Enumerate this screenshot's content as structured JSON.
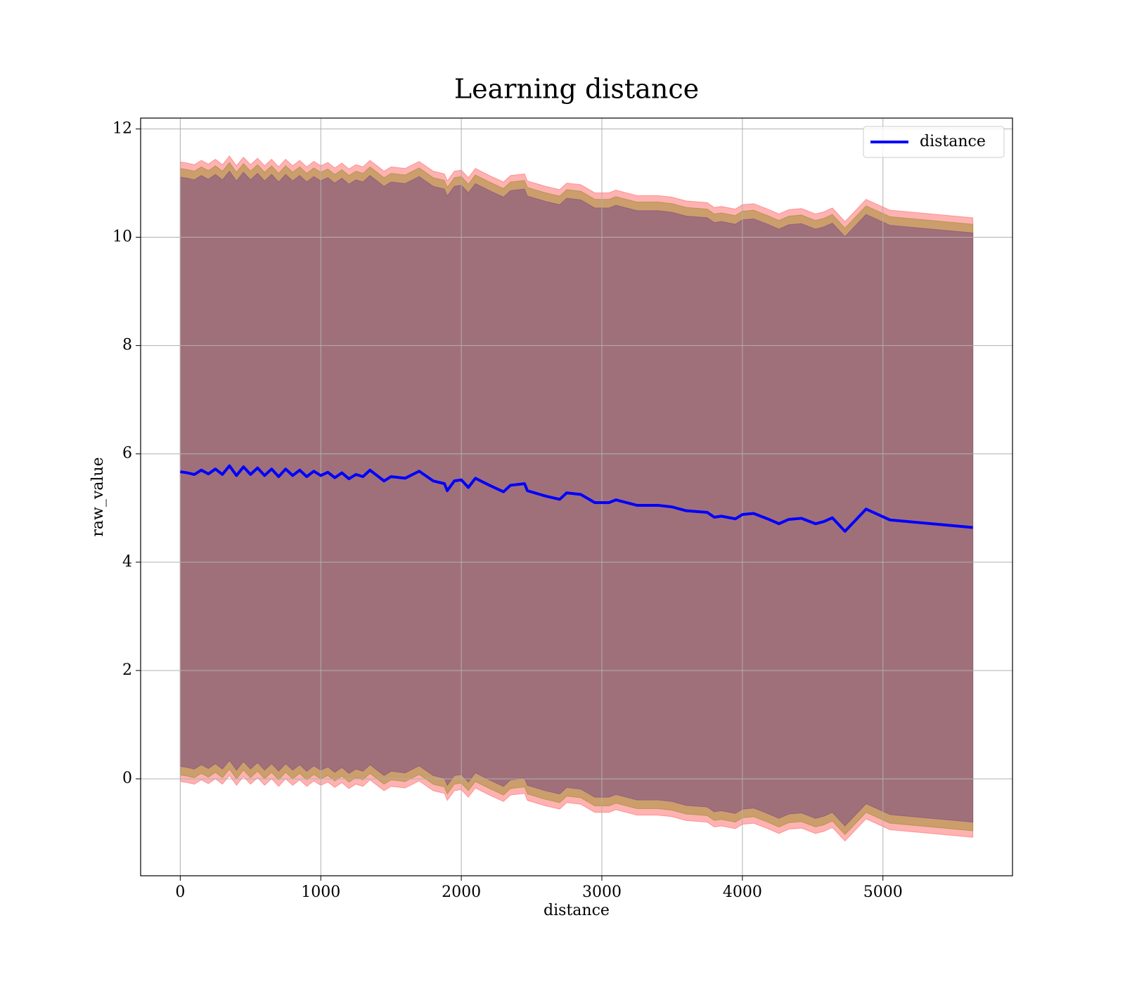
{
  "chart_data": {
    "type": "line",
    "title": "Learning distance",
    "xlabel": "distance",
    "ylabel": "raw_value",
    "x": [
      0,
      50,
      100,
      150,
      200,
      250,
      300,
      350,
      400,
      450,
      500,
      550,
      600,
      650,
      700,
      750,
      800,
      850,
      900,
      950,
      1000,
      1050,
      1100,
      1150,
      1200,
      1250,
      1300,
      1350,
      1400,
      1450,
      1500,
      1600,
      1700,
      1800,
      1880,
      1900,
      1950,
      2000,
      2050,
      2100,
      2200,
      2300,
      2350,
      2450,
      2470,
      2600,
      2700,
      2750,
      2850,
      2950,
      3050,
      3100,
      3250,
      3400,
      3500,
      3600,
      3750,
      3800,
      3850,
      3950,
      4000,
      4080,
      4180,
      4260,
      4330,
      4420,
      4520,
      4580,
      4640,
      4730,
      4880,
      5050,
      5640
    ],
    "series": [
      {
        "name": "distance",
        "color": "#0000ff",
        "values": [
          5.67,
          5.65,
          5.62,
          5.7,
          5.63,
          5.72,
          5.62,
          5.78,
          5.6,
          5.76,
          5.62,
          5.74,
          5.6,
          5.72,
          5.58,
          5.72,
          5.6,
          5.7,
          5.58,
          5.68,
          5.6,
          5.66,
          5.56,
          5.65,
          5.54,
          5.62,
          5.58,
          5.7,
          5.6,
          5.5,
          5.58,
          5.55,
          5.68,
          5.5,
          5.45,
          5.32,
          5.5,
          5.52,
          5.38,
          5.55,
          5.42,
          5.3,
          5.42,
          5.45,
          5.32,
          5.22,
          5.16,
          5.28,
          5.25,
          5.1,
          5.1,
          5.15,
          5.05,
          5.05,
          5.02,
          4.95,
          4.92,
          4.83,
          4.85,
          4.8,
          4.88,
          4.9,
          4.8,
          4.71,
          4.79,
          4.81,
          4.71,
          4.75,
          4.82,
          4.57,
          4.98,
          4.78,
          4.64
        ]
      }
    ],
    "bands": [
      {
        "color": "#ff0000",
        "opacity": 0.3,
        "spread": 5.72
      },
      {
        "color": "#808000",
        "opacity": 0.4,
        "spread": 5.6
      },
      {
        "color": "#744289",
        "opacity": 0.5,
        "spread": 5.44
      }
    ],
    "xlim": [
      -282,
      5922
    ],
    "xticks": [
      0,
      1000,
      2000,
      3000,
      4000,
      5000
    ],
    "ylim": [
      -1.79,
      12.2
    ],
    "yticks": [
      0,
      2,
      4,
      6,
      8,
      10,
      12
    ],
    "grid": true,
    "legend": "upper right"
  }
}
